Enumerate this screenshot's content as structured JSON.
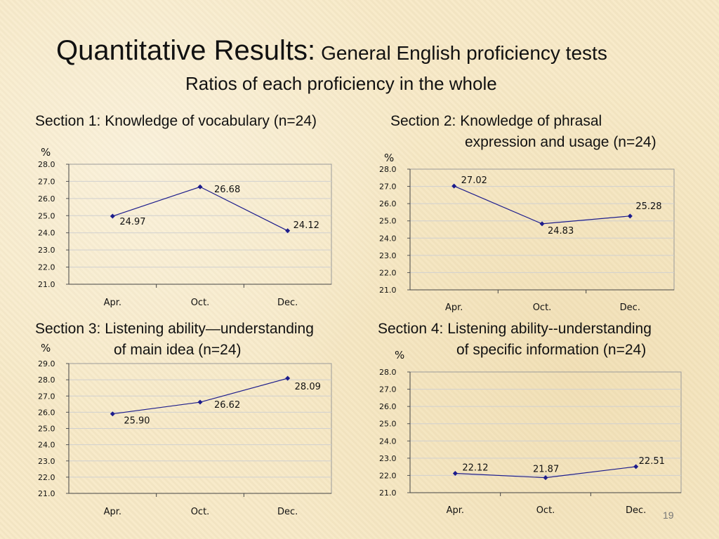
{
  "slide": {
    "title": "Quantitative Results:",
    "title_suffix": "General English proficiency tests",
    "subtitle": "Ratios of each proficiency in the whole",
    "page_number": "19",
    "line_color": "#1c1c8c",
    "grid_color": "#d0d0d0"
  },
  "chart_data": [
    {
      "type": "line",
      "title_lines": [
        "Section 1: Knowledge of vocabulary (n=24)"
      ],
      "unit": "%",
      "categories": [
        "Apr.",
        "Oct.",
        "Dec."
      ],
      "values": [
        24.97,
        26.68,
        24.12
      ],
      "value_labels": [
        "24.97",
        "26.68",
        "24.12"
      ],
      "yticks": [
        "28.0",
        "27.0",
        "26.0",
        "25.0",
        "24.0",
        "23.0",
        "22.0",
        "21.0"
      ],
      "ylim": [
        21,
        28
      ]
    },
    {
      "type": "line",
      "title_lines": [
        "Section 2: Knowledge of phrasal",
        "expression and usage (n=24)"
      ],
      "unit": "%",
      "categories": [
        "Apr.",
        "Oct.",
        "Dec."
      ],
      "values": [
        27.02,
        24.83,
        25.28
      ],
      "value_labels": [
        "27.02",
        "24.83",
        "25.28"
      ],
      "yticks": [
        "28.0",
        "27.0",
        "26.0",
        "25.0",
        "24.0",
        "23.0",
        "22.0",
        "21.0"
      ],
      "ylim": [
        21,
        28
      ]
    },
    {
      "type": "line",
      "title_lines": [
        "Section 3: Listening ability—understanding",
        "of main idea (n=24)"
      ],
      "unit": "%",
      "categories": [
        "Apr.",
        "Oct.",
        "Dec."
      ],
      "values": [
        25.9,
        26.62,
        28.09
      ],
      "value_labels": [
        "25.90",
        "26.62",
        "28.09"
      ],
      "yticks": [
        "29.0",
        "28.0",
        "27.0",
        "26.0",
        "25.0",
        "24.0",
        "23.0",
        "22.0",
        "21.0"
      ],
      "ylim": [
        21,
        29
      ]
    },
    {
      "type": "line",
      "title_lines": [
        "Section 4: Listening ability--understanding",
        "of specific information (n=24)"
      ],
      "unit": "%",
      "categories": [
        "Apr.",
        "Oct.",
        "Dec."
      ],
      "values": [
        22.12,
        21.87,
        22.51
      ],
      "value_labels": [
        "22.12",
        "21.87",
        "22.51"
      ],
      "yticks": [
        "28.0",
        "27.0",
        "26.0",
        "25.0",
        "24.0",
        "23.0",
        "22.0",
        "21.0"
      ],
      "ylim": [
        21,
        28
      ]
    }
  ]
}
